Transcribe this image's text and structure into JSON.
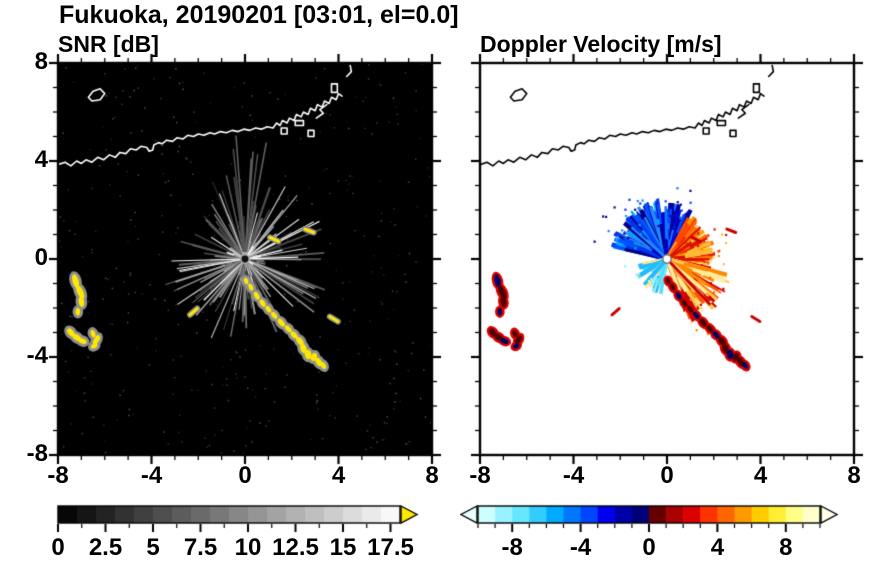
{
  "title": "Fukuoka, 20190201 [03:01, el=0.0]",
  "panels": {
    "snr": {
      "title": "SNR [dB]",
      "units": "dB"
    },
    "doppler": {
      "title": "Doppler Velocity [m/s]",
      "units": "m/s"
    }
  },
  "axes": {
    "x_range": [
      -8,
      8
    ],
    "y_range": [
      -8,
      8
    ],
    "major_ticks": [
      -8,
      -4,
      0,
      4,
      8
    ],
    "major_tick_labels": [
      "-8",
      "-4",
      "0",
      "4",
      "8"
    ],
    "minor_tick_step": 1
  },
  "colorbars": {
    "snr": {
      "min": 0,
      "max": 18,
      "label_values": [
        0,
        2.5,
        5,
        7.5,
        10,
        12.5,
        15,
        17.5
      ],
      "label_texts": [
        "0",
        "2.5",
        "5",
        "7.5",
        "10",
        "12.5",
        "15",
        "17.5"
      ],
      "tick_step": 1.25,
      "major_step": 2.5,
      "gradient_start": "#000000",
      "gradient_end": "#ffffff",
      "over_arrow_color": "#ffe800"
    },
    "doppler": {
      "min": -10,
      "max": 10,
      "label_values": [
        -8,
        -4,
        0,
        4,
        8
      ],
      "label_texts": [
        "-8",
        "-4",
        "0",
        "4",
        "8"
      ],
      "tick_step": 1,
      "major_step": 4,
      "colors": [
        "#ccffff",
        "#99f2ff",
        "#66e6ff",
        "#33ccff",
        "#00aaff",
        "#0077ff",
        "#0044ff",
        "#0000ee",
        "#0000aa",
        "#000077",
        "#660000",
        "#aa0000",
        "#dd0000",
        "#ff3300",
        "#ff6600",
        "#ff9900",
        "#ffcc00",
        "#ffee33",
        "#ffff88",
        "#ffffcc"
      ],
      "under_arrow_color": "#eaffff",
      "over_arrow_color": "#ffffe8"
    }
  },
  "chart_data": {
    "type": "heatmap",
    "title": "Fukuoka, 20190201 [03:01, el=0.0]",
    "site": "Fukuoka",
    "date": "20190201",
    "time": "03:01",
    "elevation_deg": 0.0,
    "subplots": [
      {
        "title": "SNR [dB]",
        "kind": "radar_ppi",
        "background": "#000000",
        "palette": "grayscale 0 to 17.5 dB, yellow = over range",
        "xlim": [
          -8,
          8
        ],
        "ylim": [
          -8,
          8
        ]
      },
      {
        "title": "Doppler Velocity [m/s]",
        "kind": "radar_ppi",
        "background": "#ffffff",
        "palette": "cyan/blue = negative (toward), red/orange/yellow = positive (away), -10 to 10 m/s",
        "xlim": [
          -8,
          8
        ],
        "ylim": [
          -8,
          8
        ]
      }
    ],
    "radar_center": [
      0,
      0
    ],
    "coastline": [
      [
        -8.0,
        3.85
      ],
      [
        -7.7,
        3.95
      ],
      [
        -7.45,
        3.8
      ],
      [
        -7.2,
        4.0
      ],
      [
        -7.0,
        3.9
      ],
      [
        -6.8,
        4.05
      ],
      [
        -6.55,
        3.95
      ],
      [
        -6.3,
        4.15
      ],
      [
        -6.05,
        4.05
      ],
      [
        -5.8,
        4.25
      ],
      [
        -5.55,
        4.15
      ],
      [
        -5.35,
        4.35
      ],
      [
        -5.1,
        4.3
      ],
      [
        -4.9,
        4.5
      ],
      [
        -4.65,
        4.45
      ],
      [
        -4.45,
        4.6
      ],
      [
        -4.2,
        4.55
      ],
      [
        -4.1,
        4.4
      ],
      [
        -3.95,
        4.45
      ],
      [
        -3.9,
        4.65
      ],
      [
        -3.7,
        4.75
      ],
      [
        -3.55,
        4.7
      ],
      [
        -3.35,
        4.85
      ],
      [
        -3.1,
        4.8
      ],
      [
        -2.9,
        4.95
      ],
      [
        -2.65,
        4.9
      ],
      [
        -2.45,
        5.05
      ],
      [
        -2.2,
        5.0
      ],
      [
        -2.0,
        5.1
      ],
      [
        -1.75,
        5.05
      ],
      [
        -1.5,
        5.15
      ],
      [
        -1.3,
        5.1
      ],
      [
        -1.05,
        5.2
      ],
      [
        -0.8,
        5.15
      ],
      [
        -0.55,
        5.25
      ],
      [
        -0.3,
        5.2
      ],
      [
        -0.05,
        5.3
      ],
      [
        0.2,
        5.25
      ],
      [
        0.45,
        5.35
      ],
      [
        0.7,
        5.3
      ],
      [
        0.95,
        5.4
      ],
      [
        1.2,
        5.35
      ],
      [
        1.35,
        5.55
      ],
      [
        1.5,
        5.45
      ],
      [
        1.6,
        5.65
      ],
      [
        1.8,
        5.55
      ],
      [
        1.9,
        5.75
      ],
      [
        2.1,
        5.65
      ],
      [
        2.2,
        5.9
      ],
      [
        2.4,
        5.8
      ],
      [
        2.5,
        6.0
      ],
      [
        2.7,
        5.9
      ],
      [
        2.8,
        6.15
      ],
      [
        3.0,
        6.05
      ],
      [
        3.1,
        6.3
      ],
      [
        3.3,
        6.2
      ],
      [
        3.4,
        6.45
      ],
      [
        3.6,
        6.35
      ],
      [
        3.7,
        6.6
      ],
      [
        3.9,
        6.5
      ],
      [
        4.0,
        6.75
      ],
      [
        4.15,
        6.65
      ]
    ],
    "island": [
      [
        -6.7,
        6.6
      ],
      [
        -6.5,
        6.85
      ],
      [
        -6.2,
        6.95
      ],
      [
        -6.0,
        6.75
      ],
      [
        -6.2,
        6.5
      ],
      [
        -6.55,
        6.45
      ],
      [
        -6.7,
        6.6
      ]
    ],
    "harbor_shapes": [
      [
        [
          1.55,
          5.1
        ],
        [
          1.8,
          5.1
        ],
        [
          1.8,
          5.35
        ],
        [
          1.55,
          5.35
        ],
        [
          1.55,
          5.1
        ]
      ],
      [
        [
          2.15,
          5.45
        ],
        [
          2.5,
          5.45
        ],
        [
          2.5,
          5.65
        ],
        [
          2.15,
          5.65
        ],
        [
          2.15,
          5.45
        ]
      ],
      [
        [
          2.7,
          5.0
        ],
        [
          2.95,
          5.0
        ],
        [
          2.95,
          5.25
        ],
        [
          2.7,
          5.25
        ],
        [
          2.7,
          5.0
        ]
      ],
      [
        [
          3.05,
          5.75
        ],
        [
          3.35,
          5.95
        ],
        [
          3.2,
          6.1
        ],
        [
          3.5,
          6.3
        ]
      ],
      [
        [
          3.7,
          6.8
        ],
        [
          3.95,
          6.8
        ],
        [
          3.95,
          7.15
        ],
        [
          3.7,
          7.15
        ],
        [
          3.7,
          6.8
        ]
      ],
      [
        [
          4.35,
          7.45
        ],
        [
          4.55,
          7.65
        ],
        [
          4.5,
          7.9
        ]
      ]
    ],
    "snr_streaks": {
      "count": 150,
      "bright_count": 30,
      "core_count": 45,
      "seed": 2024
    },
    "snr_dashes": [
      [
        1.25,
        0.8,
        -25
      ],
      [
        2.75,
        1.15,
        -20
      ],
      [
        -2.2,
        -2.15,
        40
      ],
      [
        3.8,
        -2.45,
        -30
      ]
    ],
    "clutter_blobs": {
      "left_cluster": [
        [
          -7.25,
          -0.9,
          0.13,
          0.3,
          15
        ],
        [
          -7.05,
          -1.35,
          0.13,
          0.32,
          25
        ],
        [
          -7.0,
          -1.75,
          0.12,
          0.22,
          10
        ],
        [
          -7.15,
          -2.15,
          0.1,
          0.16,
          0
        ],
        [
          -7.45,
          -3.0,
          0.12,
          0.2,
          40
        ],
        [
          -7.2,
          -3.2,
          0.12,
          0.22,
          55
        ],
        [
          -6.95,
          -3.35,
          0.11,
          0.18,
          70
        ],
        [
          -6.5,
          -3.05,
          0.1,
          0.16,
          20
        ],
        [
          -6.35,
          -3.3,
          0.11,
          0.22,
          -30
        ],
        [
          -6.45,
          -3.55,
          0.1,
          0.15,
          -60
        ]
      ],
      "chain": [
        [
          0.05,
          -0.9,
          0.09,
          0.14,
          20
        ],
        [
          0.25,
          -1.15,
          0.09,
          0.16,
          25
        ],
        [
          0.5,
          -1.5,
          0.1,
          0.18,
          30
        ],
        [
          0.75,
          -1.8,
          0.1,
          0.18,
          35
        ],
        [
          1.0,
          -2.05,
          0.1,
          0.16,
          35
        ],
        [
          1.25,
          -2.3,
          0.1,
          0.18,
          40
        ],
        [
          1.55,
          -2.6,
          0.11,
          0.2,
          40
        ],
        [
          1.85,
          -2.85,
          0.1,
          0.18,
          45
        ],
        [
          2.1,
          -3.1,
          0.11,
          0.18,
          45
        ],
        [
          2.35,
          -3.35,
          0.12,
          0.2,
          40
        ],
        [
          2.5,
          -3.65,
          0.13,
          0.22,
          20
        ],
        [
          2.7,
          -3.9,
          0.14,
          0.2,
          10
        ],
        [
          2.95,
          -4.0,
          0.12,
          0.18,
          -20
        ],
        [
          3.15,
          -4.2,
          0.12,
          0.2,
          30
        ],
        [
          3.35,
          -4.35,
          0.1,
          0.16,
          30
        ]
      ]
    },
    "doppler_sectors": [
      {
        "name": "upper-left-negative",
        "a0": 95,
        "a1": 168,
        "rmax": 2.5,
        "density": 2.6,
        "colors": [
          "#0033ee",
          "#0055ff",
          "#0000bb",
          "#2288ff",
          "#000088",
          "#00aaff"
        ]
      },
      {
        "name": "north-negative",
        "a0": 62,
        "a1": 95,
        "rmax": 2.3,
        "density": 2.6,
        "colors": [
          "#0044ff",
          "#0000cc",
          "#1177ff",
          "#000099"
        ]
      },
      {
        "name": "east-positive",
        "a0": -12,
        "a1": 62,
        "rmax": 2.1,
        "density": 2.4,
        "colors": [
          "#ff7700",
          "#ff9900",
          "#ff4400",
          "#ffbb33",
          "#dd1100",
          "#ffdd66"
        ]
      },
      {
        "name": "southeast-positive",
        "a0": -72,
        "a1": -12,
        "rmax": 2.9,
        "density": 2.4,
        "colors": [
          "#ff5500",
          "#cc0000",
          "#ff8800",
          "#ffcc55",
          "#ffee99"
        ]
      },
      {
        "name": "southwest-weak",
        "a0": 188,
        "a1": 262,
        "rmax": 1.5,
        "density": 0.7,
        "colors": [
          "#55ddff",
          "#99eeff",
          "#ffe88a",
          "#22bbff"
        ]
      }
    ]
  }
}
